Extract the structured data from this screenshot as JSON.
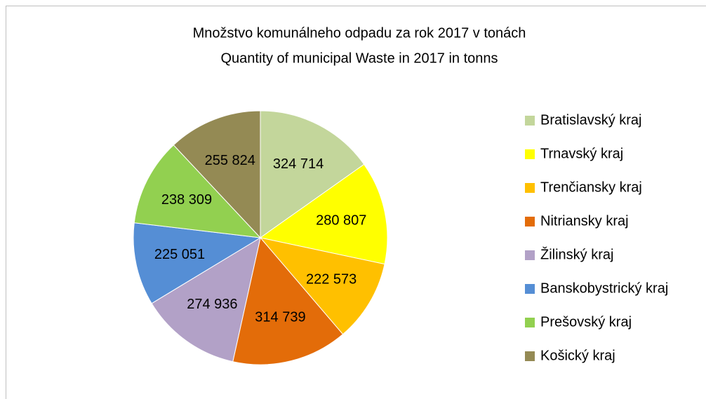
{
  "chart_data": {
    "type": "pie",
    "title": [
      "Množstvo komunálneho odpadu za rok 2017 v tonách",
      "Quantity of municipal Waste in 2017 in tonns"
    ],
    "categories": [
      "Bratislavský kraj",
      "Trnavský kraj",
      "Trenčiansky kraj",
      "Nitriansky kraj",
      "Žilinský kraj",
      "Banskobystrický kraj",
      "Prešovský kraj",
      "Košický kraj"
    ],
    "values": [
      324714,
      280807,
      222573,
      314739,
      274936,
      225051,
      238309,
      255824
    ],
    "value_labels": [
      "324 714",
      "280 807",
      "222 573",
      "314 739",
      "274 936",
      "225 051",
      "238 309",
      "255 824"
    ],
    "colors": [
      "#c3d69b",
      "#ffff00",
      "#ffc000",
      "#e36c09",
      "#b2a1c7",
      "#558ed5",
      "#92d050",
      "#948a54"
    ],
    "legend": "right"
  }
}
